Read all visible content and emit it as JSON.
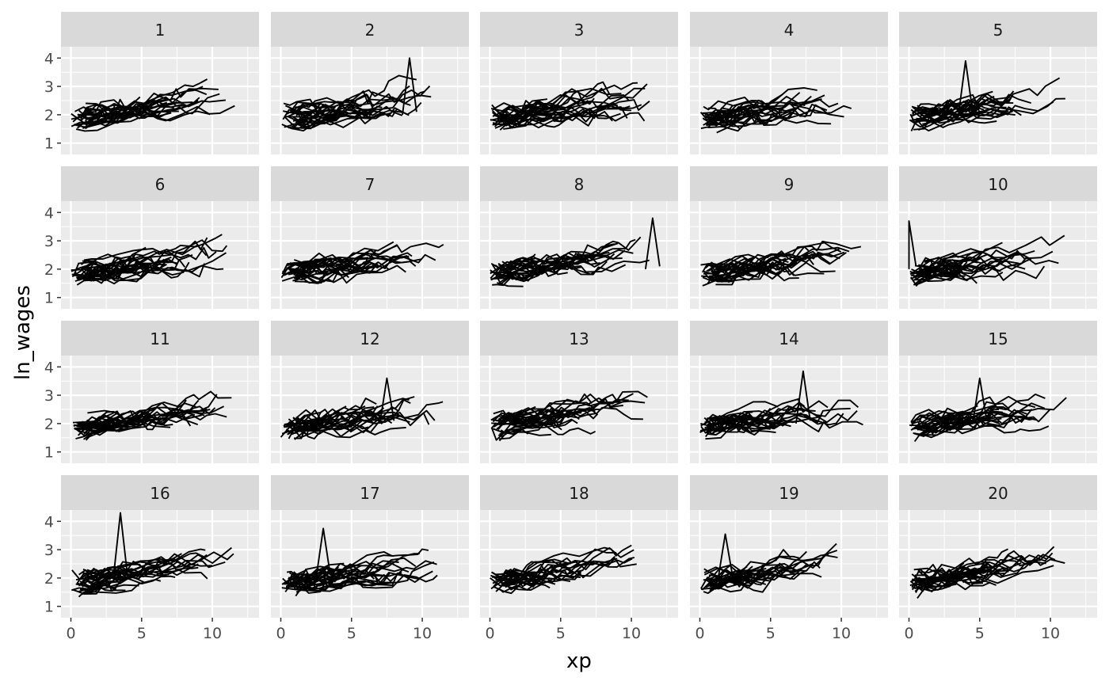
{
  "chart_data": {
    "type": "line",
    "facet_layout": {
      "rows": 4,
      "cols": 5
    },
    "facet_labels": [
      "1",
      "2",
      "3",
      "4",
      "5",
      "6",
      "7",
      "8",
      "9",
      "10",
      "11",
      "12",
      "13",
      "14",
      "15",
      "16",
      "17",
      "18",
      "19",
      "20"
    ],
    "xlabel": "xp",
    "ylabel": "ln_wages",
    "xlim": [
      -0.7,
      13.3
    ],
    "ylim": [
      0.6,
      4.4
    ],
    "x_ticks": [
      0,
      5,
      10
    ],
    "y_ticks": [
      1,
      2,
      3,
      4
    ],
    "grid": true,
    "panel_background": "#ebebeb",
    "strip_background": "#d9d9d9",
    "line_color": "#000000",
    "lines_per_panel_approx": 30,
    "typical_ln_wages_range": [
      1.2,
      2.8
    ],
    "notable_peaks": [
      {
        "panel": "2",
        "xp": 9.1,
        "ln_wages": 4.0
      },
      {
        "panel": "5",
        "xp": 4.0,
        "ln_wages": 3.9
      },
      {
        "panel": "8",
        "xp": 11.5,
        "ln_wages": 3.8
      },
      {
        "panel": "10",
        "xp": 0.0,
        "ln_wages": 3.7
      },
      {
        "panel": "12",
        "xp": 7.5,
        "ln_wages": 3.6
      },
      {
        "panel": "14",
        "xp": 7.3,
        "ln_wages": 3.85
      },
      {
        "panel": "15",
        "xp": 5.0,
        "ln_wages": 3.6
      },
      {
        "panel": "16",
        "xp": 3.5,
        "ln_wages": 4.3
      },
      {
        "panel": "17",
        "xp": 3.0,
        "ln_wages": 3.75
      },
      {
        "panel": "19",
        "xp": 1.8,
        "ln_wages": 3.55
      }
    ]
  }
}
